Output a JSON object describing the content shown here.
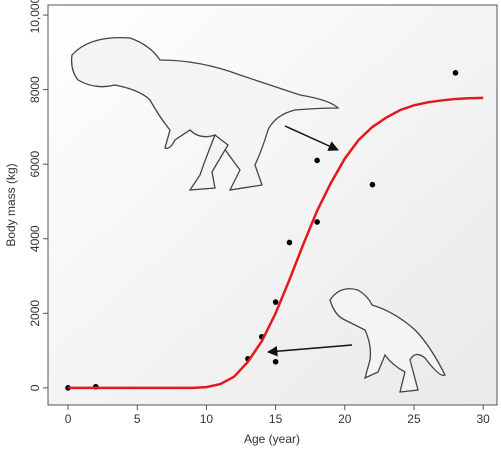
{
  "chart_data": {
    "type": "scatter",
    "x_label": "Age (year)",
    "y_label": "Body mass (kg)",
    "xlim": [
      -1.45,
      31.0
    ],
    "ylim": [
      -460,
      10270
    ],
    "xticks": [
      0,
      5,
      10,
      15,
      20,
      25,
      30
    ],
    "yticks": [
      0,
      2000,
      4000,
      6000,
      8000,
      {
        "value": 10000,
        "label": "10,000"
      }
    ],
    "grid": false,
    "series": [
      {
        "type": "scatter",
        "color": "#000000",
        "x": [
          0,
          2,
          13,
          14,
          15,
          15,
          16,
          18,
          18,
          22,
          28
        ],
        "values": [
          0,
          30,
          780,
          1370,
          2300,
          700,
          3900,
          4450,
          6100,
          5450,
          8450
        ]
      },
      {
        "type": "line",
        "color": "#e31a1c",
        "x": [
          0,
          1,
          2,
          3,
          4,
          5,
          6,
          7,
          8,
          9,
          10,
          11,
          12,
          13,
          14,
          15,
          16,
          17,
          18,
          19,
          20,
          21,
          22,
          23,
          24,
          25,
          26,
          27,
          28,
          29,
          30
        ],
        "values": [
          0,
          0,
          0,
          0,
          0,
          0,
          0,
          0,
          0,
          0,
          20,
          100,
          300,
          700,
          1250,
          2000,
          2900,
          3850,
          4750,
          5500,
          6150,
          6650,
          7000,
          7250,
          7450,
          7580,
          7660,
          7710,
          7750,
          7770,
          7780
        ]
      }
    ]
  }
}
